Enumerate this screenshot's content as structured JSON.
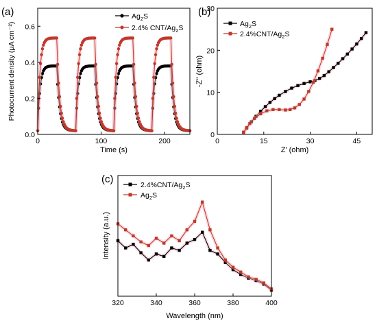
{
  "panels": [
    {
      "label": "(a)",
      "type": "line",
      "xlabel": "Time (s)",
      "ylabel": "Photocurrent density (μA cm⁻²)",
      "xlim": [
        0,
        240
      ],
      "ylim": [
        0,
        0.7
      ],
      "xticks": [
        0,
        100,
        200
      ],
      "yticks": [
        0.0,
        0.2,
        0.4,
        0.6
      ],
      "xtick_labels": [
        "0",
        "100",
        "200"
      ],
      "ytick_labels": [
        "0.0",
        "0.2",
        "0.4",
        "0.6"
      ],
      "legend": {
        "placement": "top-right",
        "entries": [
          {
            "text": "Ag",
            "sub": "2",
            "post": "S"
          },
          {
            "text": "2.4% CNT/Ag",
            "sub": "2",
            "post": "S"
          }
        ]
      },
      "cycle": {
        "on_start": [
          0,
          60,
          120,
          180
        ],
        "on_length": 30,
        "rise_tau": 3.5,
        "fall_tau": 4.5,
        "base": 0.02
      },
      "series": [
        {
          "name": "Ag₂S",
          "plateau": 0.38,
          "color": "#000000",
          "marker": "circle"
        },
        {
          "name": "2.4% CNT/Ag₂S",
          "plateau": 0.535,
          "color": "#c0392b",
          "marker": "circle"
        }
      ]
    },
    {
      "label": "(b)",
      "type": "line",
      "xlabel": "Z' (ohm)",
      "ylabel": "-Z'' (ohm)",
      "xlim": [
        0,
        50
      ],
      "ylim": [
        0,
        30
      ],
      "xticks": [
        0,
        15,
        30,
        45
      ],
      "yticks": [
        0,
        10,
        20,
        30
      ],
      "xtick_labels": [
        "0",
        "15",
        "30",
        "45"
      ],
      "ytick_labels": [
        "0",
        "10",
        "20",
        "30"
      ],
      "legend": {
        "placement": "top-left",
        "entries": [
          {
            "text": "Ag",
            "sub": "2",
            "post": "S"
          },
          {
            "text": "2.4%CNT/Ag",
            "sub": "2",
            "post": "S"
          }
        ]
      },
      "series": [
        {
          "name": "Ag₂S",
          "color": "#000000",
          "marker": "square",
          "x": [
            8.5,
            9.5,
            11,
            12.5,
            14,
            15.5,
            17,
            18.5,
            20,
            22,
            24,
            26,
            28,
            30,
            31.5,
            33,
            34.5,
            36,
            37.5,
            39,
            40.5,
            42,
            43.5,
            45,
            46.5,
            48
          ],
          "y": [
            0.5,
            1.5,
            3,
            4.3,
            5.5,
            6.6,
            7.6,
            8.5,
            9.3,
            10.2,
            11,
            11.6,
            12.1,
            12.5,
            12.8,
            13.3,
            14,
            14.9,
            15.9,
            16.9,
            18,
            19.1,
            20.3,
            21.5,
            22.8,
            24.2
          ]
        },
        {
          "name": "2.4%CNT/Ag₂S",
          "color": "#c0392b",
          "marker": "square",
          "x": [
            8.5,
            9.5,
            10.5,
            12,
            14,
            16,
            18,
            20,
            22,
            23.5,
            25,
            26.5,
            28,
            29.5,
            31,
            32.5,
            34,
            35.5,
            37
          ],
          "y": [
            0.5,
            1.6,
            2.6,
            3.8,
            4.9,
            5.6,
            5.9,
            5.9,
            5.8,
            5.9,
            6.3,
            7.1,
            8.4,
            10.2,
            12.4,
            15.1,
            18.1,
            21.4,
            25
          ]
        }
      ]
    },
    {
      "label": "(c)",
      "type": "line",
      "xlabel": "Wavelength (nm)",
      "ylabel": "Intensity (a.u.)",
      "xlim": [
        320,
        400
      ],
      "ylim": [
        0,
        1
      ],
      "xticks": [
        320,
        340,
        360,
        380,
        400
      ],
      "xtick_labels": [
        "320",
        "340",
        "360",
        "380",
        "400"
      ],
      "legend": {
        "placement": "top-left",
        "entries": [
          {
            "text": "2.4%CNT/Ag",
            "sub": "2",
            "post": "S"
          },
          {
            "text": "Ag",
            "sub": "2",
            "post": "S"
          }
        ]
      },
      "series": [
        {
          "name": "2.4%CNT/Ag₂S",
          "color": "#000000",
          "marker": "square",
          "x": [
            320,
            324,
            328,
            332,
            336,
            340,
            344,
            348,
            352,
            356,
            360,
            364,
            368,
            372,
            376,
            380,
            384,
            388,
            392,
            396,
            400
          ],
          "y": [
            0.46,
            0.4,
            0.43,
            0.36,
            0.3,
            0.35,
            0.33,
            0.4,
            0.38,
            0.44,
            0.47,
            0.53,
            0.38,
            0.35,
            0.28,
            0.22,
            0.18,
            0.15,
            0.13,
            0.1,
            0.05
          ]
        },
        {
          "name": "Ag₂S",
          "color": "#c0392b",
          "marker": "square",
          "x": [
            320,
            324,
            328,
            332,
            336,
            340,
            344,
            348,
            352,
            356,
            360,
            364,
            368,
            372,
            376,
            380,
            384,
            388,
            392,
            396,
            400
          ],
          "y": [
            0.6,
            0.55,
            0.5,
            0.45,
            0.42,
            0.48,
            0.44,
            0.5,
            0.46,
            0.55,
            0.62,
            0.78,
            0.55,
            0.4,
            0.3,
            0.24,
            0.2,
            0.16,
            0.14,
            0.11,
            0.06
          ]
        }
      ]
    }
  ]
}
